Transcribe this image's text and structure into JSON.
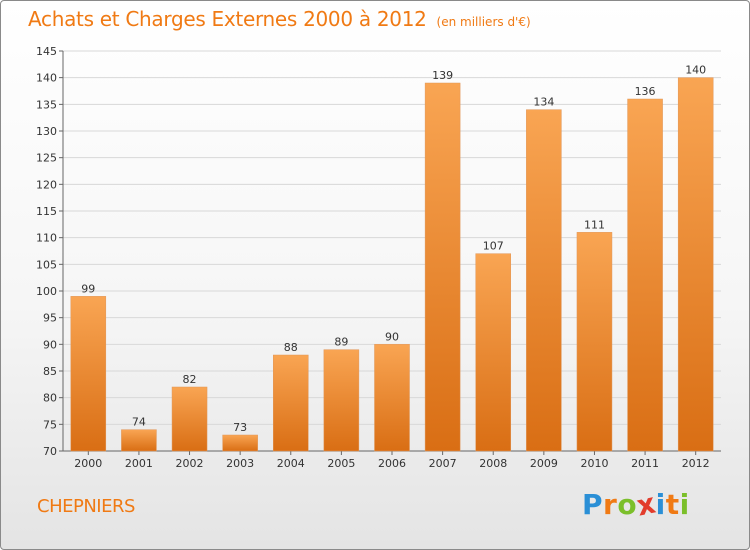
{
  "chart_data": {
    "type": "bar",
    "title": "Achats et Charges Externes 2000 à 2012",
    "subtitle": "(en milliers d'€)",
    "categories": [
      "2000",
      "2001",
      "2002",
      "2003",
      "2004",
      "2005",
      "2006",
      "2007",
      "2008",
      "2009",
      "2010",
      "2011",
      "2012"
    ],
    "values": [
      99,
      74,
      82,
      73,
      88,
      89,
      90,
      139,
      107,
      134,
      111,
      136,
      140
    ],
    "ylim": [
      70,
      145
    ],
    "yticks": [
      70,
      75,
      80,
      85,
      90,
      95,
      100,
      105,
      110,
      115,
      120,
      125,
      130,
      135,
      140,
      145
    ],
    "xlabel": "",
    "ylabel": "",
    "grid": true,
    "legend": "none",
    "bar_color_light": "#f9a553",
    "bar_color_dark": "#d96e14",
    "gridline_color": "#d8d8d8"
  },
  "footer": {
    "commune": "CHEPNIERS"
  },
  "brand": {
    "letters": [
      "P",
      "r",
      "o",
      "x",
      "i",
      "t",
      "i"
    ],
    "colors": [
      "#2a8fd6",
      "#f07a14",
      "#7bbf2a",
      "#e23c2c",
      "#2a8fd6",
      "#f07a14",
      "#7bbf2a"
    ]
  },
  "colors": {
    "accent": "#f07a14"
  }
}
